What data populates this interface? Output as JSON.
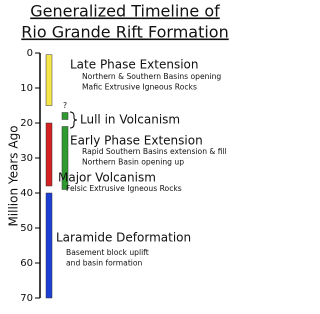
{
  "chart_data": {
    "type": "timeline",
    "title_lines": [
      "Generalized Timeline of",
      "Rio Grande Rift Formation"
    ],
    "y_label": "Million Years Ago",
    "ylim": [
      0,
      70
    ],
    "yticks": [
      0,
      10,
      20,
      30,
      40,
      50,
      60,
      70
    ],
    "events": [
      {
        "name": "Late Phase Extension",
        "details": [
          "Northern & Southern Basins opening",
          "Mafic Extrusive Igneous Rocks"
        ],
        "start": 0.5,
        "end": 15,
        "color": "#f5e64a"
      },
      {
        "name": "Lull in Volcanism",
        "marker": "?",
        "start": 17,
        "end": 19,
        "color": "#2f9a2f"
      },
      {
        "name": "Early Phase Extension",
        "details": [
          "Rapid Southern Basins extension & fill",
          "Northern Basin opening up"
        ],
        "start": 21,
        "end": 39,
        "color": "#2f9a2f"
      },
      {
        "name": "Major Volcanism",
        "details": [
          "Felsic Extrusive Igneous Rocks"
        ],
        "start": 20,
        "end": 38,
        "color": "#d42222"
      },
      {
        "name": "Laramide Deformation",
        "details": [
          "Basement block uplift",
          "and basin formation"
        ],
        "start": 40,
        "end": 70,
        "color": "#1c3fd4"
      }
    ]
  }
}
